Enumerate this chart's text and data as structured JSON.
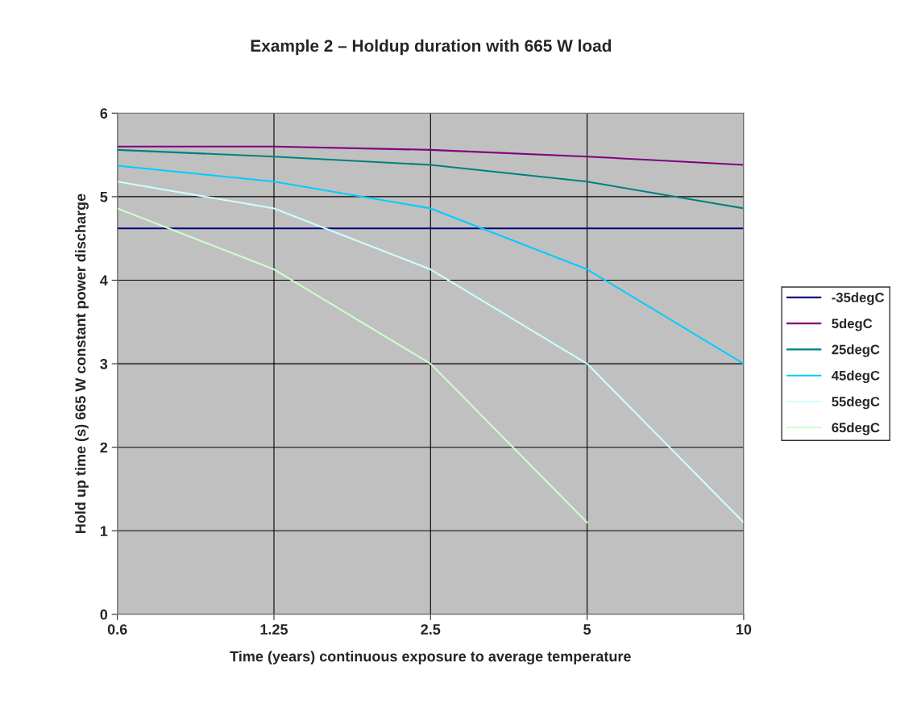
{
  "chart_data": {
    "type": "line",
    "title": "Example 2 – Holdup duration with 665 W load",
    "xlabel": "Time (years) continuous exposure to average temperature",
    "ylabel": "Hold up time (s) 665 W constant power discharge",
    "categories": [
      "0.6",
      "1.25",
      "2.5",
      "5",
      "10"
    ],
    "series": [
      {
        "name": "-35degC",
        "color": "#000080",
        "values": [
          4.62,
          4.62,
          4.62,
          4.62,
          4.62
        ]
      },
      {
        "name": "5degC",
        "color": "#800080",
        "values": [
          5.6,
          5.6,
          5.56,
          5.48,
          5.38
        ]
      },
      {
        "name": "25degC",
        "color": "#008080",
        "values": [
          5.56,
          5.48,
          5.38,
          5.18,
          4.86
        ]
      },
      {
        "name": "45degC",
        "color": "#00ccff",
        "values": [
          5.37,
          5.18,
          4.86,
          4.13,
          3.0
        ]
      },
      {
        "name": "55degC",
        "color": "#ccffff",
        "values": [
          5.18,
          4.86,
          4.13,
          3.0,
          1.1
        ]
      },
      {
        "name": "65degC",
        "color": "#ccffcc",
        "values": [
          4.86,
          4.13,
          3.0,
          1.1,
          null
        ]
      }
    ],
    "ylim": [
      0,
      6
    ],
    "yticks": [
      0,
      1,
      2,
      3,
      4,
      5,
      6
    ],
    "grid": true,
    "legend": "right"
  }
}
